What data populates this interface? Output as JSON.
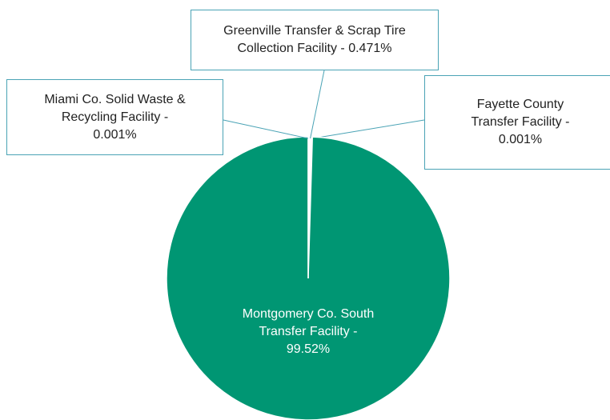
{
  "chart_data": {
    "type": "pie",
    "values": [
      0.471,
      0.001,
      99.52,
      0.001
    ],
    "value_labels": [
      "Greenville Transfer & Scrap Tire\nCollection Facility  - 0.471%",
      "Fayette County\nTransfer Facility -\n0.001%",
      "Montgomery Co. South\nTransfer Facility  -\n99.52%",
      "Miami Co. Solid Waste &\nRecycling Facility -\n0.001%"
    ],
    "colors": [
      "#ffffff",
      "#ffffff",
      "#009673",
      "#ffffff"
    ]
  }
}
